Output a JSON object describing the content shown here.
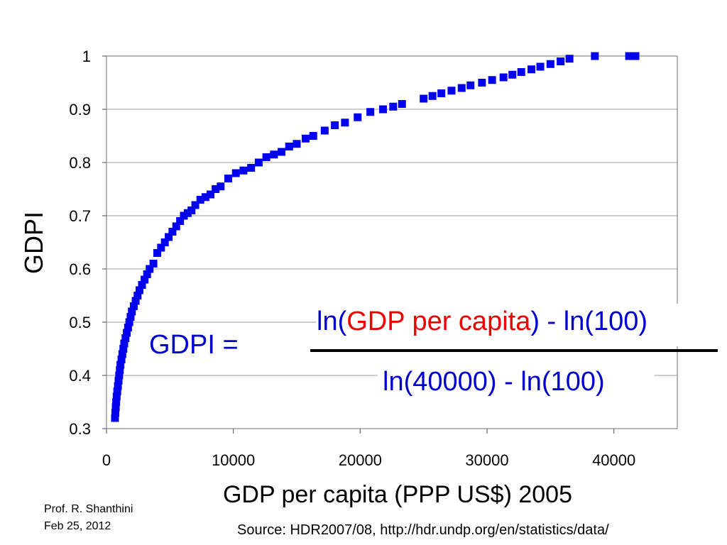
{
  "chart_data": {
    "type": "scatter",
    "xlabel": "GDP per capita (PPP US$) 2005",
    "ylabel": "GDPI",
    "xlim": [
      0,
      45000
    ],
    "ylim": [
      0.3,
      1
    ],
    "x_ticks": [
      "0",
      "10000",
      "20000",
      "30000",
      "40000"
    ],
    "y_ticks": [
      "0.3",
      "0.4",
      "0.5",
      "0.6",
      "0.7",
      "0.8",
      "0.9",
      "1"
    ],
    "grid": "horizontal",
    "marker_color": "#0000ee",
    "series": [
      {
        "x": [
          670,
          700,
          730,
          760,
          800,
          850,
          900,
          950,
          1000,
          1050,
          1100,
          1180,
          1250,
          1330,
          1400,
          1500,
          1600,
          1700,
          1800,
          1900,
          2000,
          2150,
          2300,
          2450,
          2600,
          2800,
          3000,
          3200,
          3400,
          3700,
          4000,
          4300,
          4600,
          4900,
          5200,
          5500,
          5800,
          6100,
          6400,
          6700,
          7000,
          7400,
          7800,
          8200,
          8600,
          9000,
          9600,
          10200,
          10800,
          11400,
          12000,
          12600,
          13200,
          13800,
          14400,
          15000,
          15700,
          16300,
          17200,
          18000,
          18800,
          19800,
          20800,
          21800,
          22600,
          23300,
          25000,
          25700,
          26400,
          27200,
          28000,
          28700,
          29600,
          30400,
          31300,
          32000,
          32700,
          33500,
          34200,
          35000,
          35800,
          36500,
          38500,
          41200,
          41500,
          41700
        ],
        "y": [
          0.32,
          0.33,
          0.34,
          0.35,
          0.36,
          0.37,
          0.38,
          0.39,
          0.4,
          0.41,
          0.42,
          0.43,
          0.44,
          0.45,
          0.46,
          0.47,
          0.48,
          0.49,
          0.5,
          0.51,
          0.52,
          0.53,
          0.54,
          0.55,
          0.56,
          0.57,
          0.58,
          0.59,
          0.6,
          0.61,
          0.63,
          0.64,
          0.65,
          0.66,
          0.67,
          0.68,
          0.69,
          0.7,
          0.705,
          0.71,
          0.72,
          0.73,
          0.735,
          0.74,
          0.75,
          0.755,
          0.77,
          0.78,
          0.785,
          0.79,
          0.8,
          0.81,
          0.815,
          0.82,
          0.83,
          0.835,
          0.845,
          0.85,
          0.86,
          0.87,
          0.875,
          0.885,
          0.895,
          0.9,
          0.905,
          0.91,
          0.92,
          0.925,
          0.93,
          0.935,
          0.94,
          0.945,
          0.95,
          0.955,
          0.96,
          0.965,
          0.97,
          0.975,
          0.98,
          0.985,
          0.99,
          0.995,
          1.0,
          1.0,
          1.0,
          1.0
        ]
      }
    ]
  },
  "formula": {
    "lhs": "GDPI =",
    "num_ln_open": "ln(",
    "num_highlight": "GDP per capita",
    "num_close": ") - ln(100)",
    "denominator": "ln(40000) - ln(100)",
    "text_color": "#0000cc",
    "highlight_color": "#ee0000"
  },
  "footer": {
    "author": "Prof. R. Shanthini",
    "date": "Feb 25, 2012",
    "source": "Source: HDR2007/08, http://hdr.undp.org/en/statistics/data/"
  }
}
